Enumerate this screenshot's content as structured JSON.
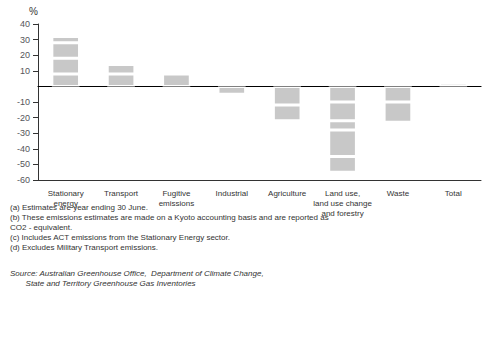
{
  "chart_data": {
    "type": "bar",
    "stacked": true,
    "ylabel": "%",
    "categories": [
      "Stationary\nenergy",
      "Transport",
      "Fugitive\nemissions",
      "Industrial",
      "Agriculture",
      "Land use,\nland use change\nand forestry",
      "Waste",
      "Total"
    ],
    "values": [
      [
        8,
        10,
        10,
        4
      ],
      [
        8,
        6
      ],
      [
        8
      ],
      [
        -5
      ],
      [
        -12,
        -10
      ],
      [
        -10,
        -12,
        -6,
        -17,
        -10
      ],
      [
        -10,
        -13
      ],
      [
        2
      ]
    ],
    "color": "#c8c8c8",
    "ylim": [
      -60,
      40
    ],
    "yticks": [
      -60,
      -50,
      -40,
      -30,
      -20,
      -10,
      10,
      20,
      30,
      40
    ],
    "grid": false,
    "annotations": [
      "(a) Estimates are year ending 30 June.\n(b) These emissions estimates are made on a Kyoto accounting basis and are reported as\nCO2 - equivalent.\n(c) Includes ACT emissions from the Stationary Energy sector.\n(d) Excludes Military Transport emissions.",
      "Source: Australian Greenhouse Office,  Department of Climate Change,\n       State and Territory Greenhouse Gas Inventories"
    ]
  }
}
